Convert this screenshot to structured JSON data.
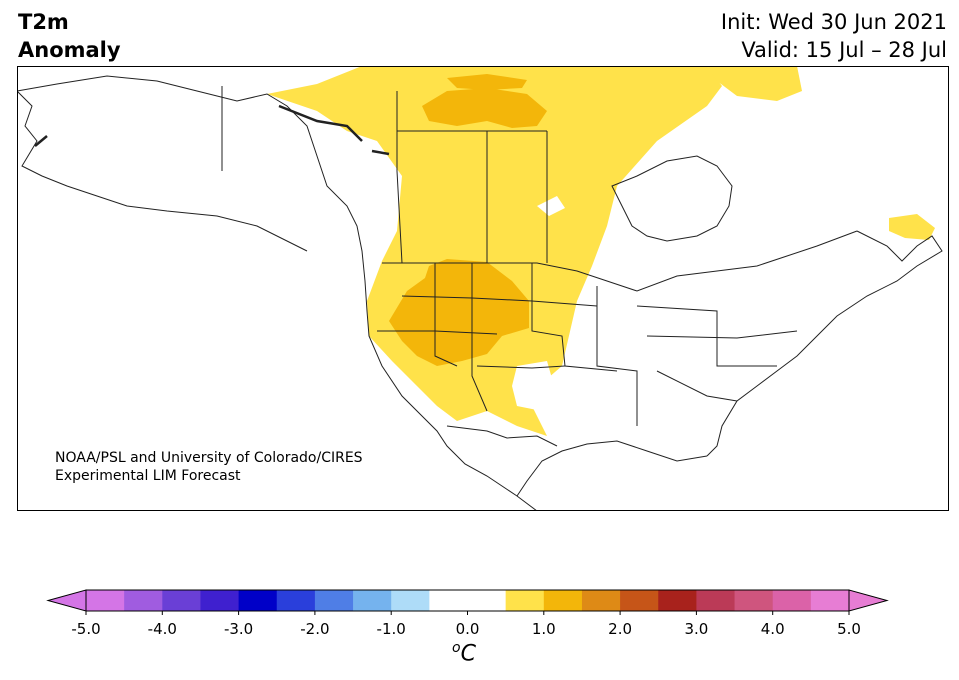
{
  "title": {
    "line1": "T2m",
    "line2": "Anomaly"
  },
  "info": {
    "init": "Init: Wed 30 Jun 2021",
    "valid": "Valid: 15 Jul – 28 Jul"
  },
  "credit": {
    "line1": "NOAA/PSL and University of Colorado/CIRES",
    "line2": "Experimental LIM Forecast"
  },
  "colorbar": {
    "ticks": [
      "-5.0",
      "-4.0",
      "-3.0",
      "-2.0",
      "-1.0",
      "0.0",
      "1.0",
      "2.0",
      "3.0",
      "4.0",
      "5.0"
    ],
    "unit_sup": "o",
    "unit": "C",
    "range": [
      -5.0,
      5.0
    ],
    "step": 0.5,
    "extend": "both",
    "colors": [
      "#d475e6",
      "#a05ce0",
      "#6a3fd6",
      "#3f20cf",
      "#0000c8",
      "#2a3fdb",
      "#4f7ee6",
      "#75b3ee",
      "#aedcf8",
      "#ffffff",
      "#ffffff",
      "#ffe24a",
      "#f3b60a",
      "#de8a16",
      "#c65518",
      "#a8221c",
      "#bb3a57",
      "#cf557e",
      "#db62a8",
      "#e77dd4"
    ]
  },
  "legend_colors": {
    "anomaly_0_5_to_1": "#ffe24a",
    "anomaly_1_to_1_5": "#f3b60a",
    "land_border": "#222222"
  }
}
